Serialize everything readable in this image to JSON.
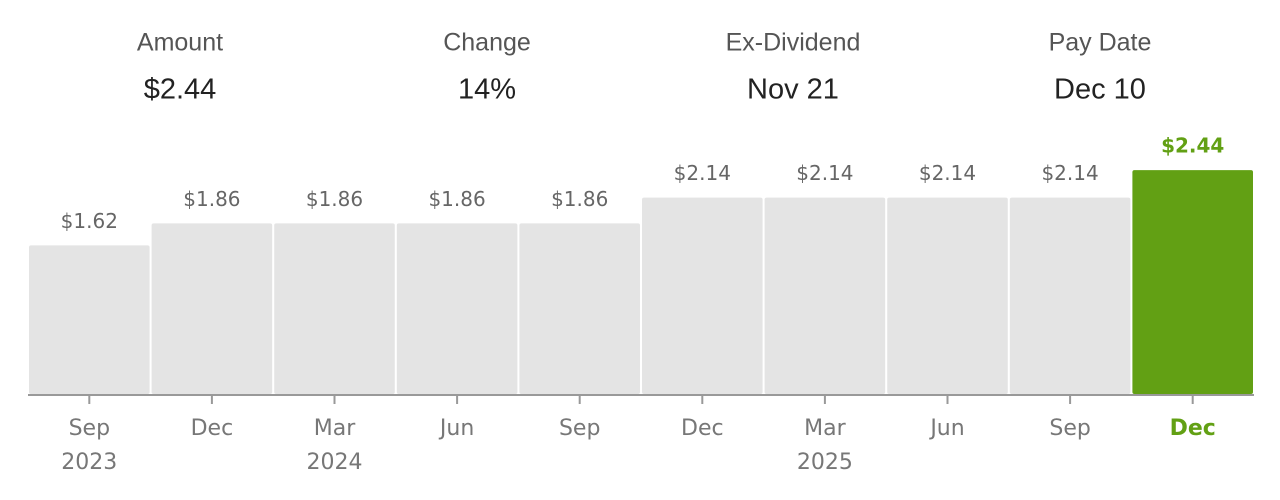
{
  "stats": [
    {
      "label": "Amount",
      "value": "$2.44"
    },
    {
      "label": "Change",
      "value": "14%"
    },
    {
      "label": "Ex-Dividend",
      "value": "Nov 21"
    },
    {
      "label": "Pay Date",
      "value": "Dec 10"
    }
  ],
  "chart_data": {
    "type": "bar",
    "categories": [
      "Sep",
      "Dec",
      "Mar",
      "Jun",
      "Sep",
      "Dec",
      "Mar",
      "Jun",
      "Sep",
      "Dec"
    ],
    "years": [
      "2023",
      null,
      "2024",
      null,
      null,
      null,
      "2025",
      null,
      null,
      null
    ],
    "values": [
      1.62,
      1.86,
      1.86,
      1.86,
      1.86,
      2.14,
      2.14,
      2.14,
      2.14,
      2.44
    ],
    "value_labels": [
      "$1.62",
      "$1.86",
      "$1.86",
      "$1.86",
      "$1.86",
      "$2.14",
      "$2.14",
      "$2.14",
      "$2.14",
      "$2.44"
    ],
    "colors": [
      "#e4e4e4",
      "#e4e4e4",
      "#e4e4e4",
      "#e4e4e4",
      "#e4e4e4",
      "#e4e4e4",
      "#e4e4e4",
      "#e4e4e4",
      "#e4e4e4",
      "#62a014"
    ],
    "ylim": [
      0,
      4
    ]
  }
}
